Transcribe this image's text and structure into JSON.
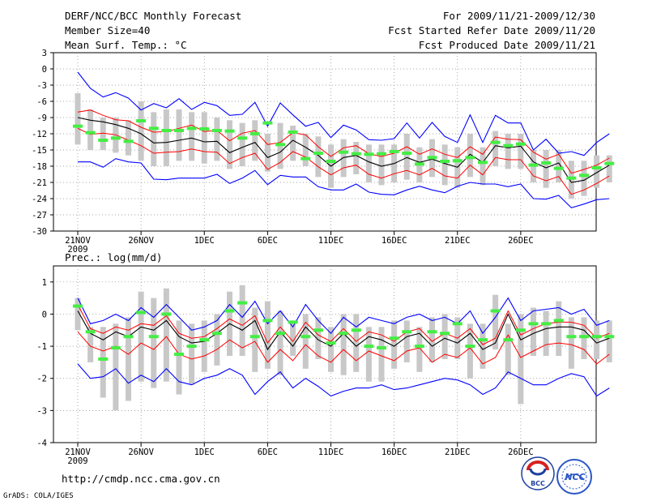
{
  "header": {
    "title": "DERF/NCC/BCC Monthly Forecast",
    "member_size": "Member Size=40",
    "period": "For 2009/11/21-2009/12/30",
    "refer_date": "Fcst Started Refer Date 2009/11/20",
    "produced_date": "Fcst Produced Date 2009/11/21"
  },
  "footer": {
    "url": "http://cmdp.ncc.cma.gov.cn",
    "credit": "GrADS: COLA/IGES",
    "logo_bcc_text": "BCC",
    "logo_ncc_text": "NCC"
  },
  "colors": {
    "mean": "#000000",
    "spread": "#ff0000",
    "extreme": "#0000ff",
    "box": "#c8c8c8",
    "obs": "#44ee44",
    "grid": "#888888"
  },
  "chart_data": [
    {
      "type": "line",
      "title": "Mean Surf. Temp.: °C",
      "days": 40,
      "ylim": [
        -30,
        3
      ],
      "yticks": [
        3,
        0,
        -3,
        -6,
        -9,
        -12,
        -15,
        -18,
        -21,
        -24,
        -27,
        -30
      ],
      "x_ticks": [
        {
          "day": 0,
          "label": "21NOV",
          "sub": "2009"
        },
        {
          "day": 5,
          "label": "26NOV"
        },
        {
          "day": 10,
          "label": "1DEC"
        },
        {
          "day": 15,
          "label": "6DEC"
        },
        {
          "day": 20,
          "label": "11DEC"
        },
        {
          "day": 25,
          "label": "16DEC"
        },
        {
          "day": 30,
          "label": "21DEC"
        },
        {
          "day": 35,
          "label": "26DEC"
        }
      ],
      "series": [
        {
          "name": "mean",
          "values": [
            -9,
            -9.5,
            -9.8,
            -10.3,
            -11,
            -12,
            -13.7,
            -13.6,
            -13.2,
            -12.8,
            -13.5,
            -13.4,
            -15.5,
            -14.5,
            -13.6,
            -16.4,
            -15.4,
            -13.2,
            -14.5,
            -16,
            -18,
            -16.4,
            -16,
            -17.2,
            -18,
            -17.5,
            -16.4,
            -17.3,
            -16.7,
            -17.5,
            -18.2,
            -15.8,
            -17.3,
            -14.2,
            -14.6,
            -14.3,
            -17.2,
            -18.3,
            -17.4,
            -21,
            -20.6,
            -19.2,
            -17.8
          ]
        },
        {
          "name": "upper-spread",
          "values": [
            -8,
            -7.6,
            -8.6,
            -9.4,
            -9.6,
            -10.8,
            -11.7,
            -11.6,
            -11,
            -10.4,
            -11.6,
            -11.4,
            -13.3,
            -11.9,
            -11.4,
            -14,
            -13.6,
            -11.8,
            -12.2,
            -14.4,
            -16.2,
            -14.6,
            -14.2,
            -15.7,
            -16.2,
            -15.6,
            -14.4,
            -15.8,
            -14.8,
            -15.8,
            -16.4,
            -14.4,
            -15.8,
            -12.6,
            -13,
            -13.1,
            -15.4,
            -16.7,
            -15.8,
            -19.3,
            -18.6,
            -17.8,
            -16.5
          ]
        },
        {
          "name": "lower-spread",
          "values": [
            -11,
            -12.1,
            -11.9,
            -12.2,
            -13.2,
            -14.2,
            -15.6,
            -15.4,
            -15.3,
            -14.8,
            -15.3,
            -15.4,
            -17.5,
            -16.4,
            -15.6,
            -18.6,
            -17.3,
            -15.3,
            -16.3,
            -18.1,
            -19.6,
            -18.3,
            -17.8,
            -19.5,
            -20.2,
            -19.4,
            -18.8,
            -19.6,
            -18.4,
            -19.8,
            -20.2,
            -17.8,
            -19.6,
            -16.4,
            -16.8,
            -16.8,
            -19.8,
            -20.7,
            -19.9,
            -23.2,
            -22.4,
            -21.2,
            -19.8
          ]
        },
        {
          "name": "maximum",
          "values": [
            -0.6,
            -3.6,
            -5.2,
            -4.4,
            -5.4,
            -7.6,
            -6.4,
            -7.2,
            -5.5,
            -7.5,
            -6.2,
            -6.8,
            -8.6,
            -8.4,
            -6.2,
            -10.6,
            -6.3,
            -8.5,
            -10.6,
            -9.9,
            -12.7,
            -10.4,
            -11.3,
            -13.1,
            -13.2,
            -12.9,
            -10,
            -12.8,
            -9.9,
            -12.5,
            -13.6,
            -8.5,
            -13.6,
            -8.6,
            -10,
            -10,
            -15,
            -13,
            -15.6,
            -15.3,
            -16,
            -13.6,
            -12
          ]
        },
        {
          "name": "minimum",
          "values": [
            -17.2,
            -17.2,
            -18.2,
            -16.6,
            -17.2,
            -17.4,
            -20.4,
            -20.5,
            -20.2,
            -20.2,
            -20.2,
            -19.5,
            -21.2,
            -20.2,
            -18.8,
            -21.4,
            -19.7,
            -20,
            -20,
            -21.8,
            -22.4,
            -22.4,
            -21.3,
            -22.8,
            -23.2,
            -23.3,
            -22.4,
            -21.7,
            -22.4,
            -22.9,
            -21.7,
            -21,
            -21.3,
            -21.3,
            -21.8,
            -21.3,
            -24,
            -24.1,
            -23.4,
            -25.7,
            -25,
            -24.2,
            -24
          ]
        },
        {
          "name": "observed",
          "values": [
            -10.6,
            -11.8,
            -13.2,
            -12.8,
            -13.4,
            -9.6,
            -11,
            -11.4,
            -11.4,
            -11,
            -11.1,
            -11.4,
            -11.5,
            -12.8,
            -12,
            -10,
            -14,
            -11.7,
            -16.6,
            -15.6,
            -17.1,
            -15.4,
            -15.7,
            -15.8,
            -15.7,
            -15.3,
            -15.6,
            -17.6,
            -16.4,
            -17.1,
            -17,
            -16.4,
            -17.3,
            -13.6,
            -14.2,
            -13.9,
            -17.8,
            -17.4,
            -18.4,
            -20.2,
            -19.7,
            -18.3,
            -17.5
          ]
        },
        {
          "name": "box-top",
          "values": [
            -4.5,
            -7.5,
            -9,
            -9,
            -9.5,
            -6,
            -8,
            -7.5,
            -7.5,
            -8,
            -8,
            -9,
            -9.5,
            -10,
            -9.5,
            -12,
            -10,
            -10.5,
            -12,
            -12.5,
            -14,
            -13,
            -13.5,
            -14,
            -14,
            -14,
            -12,
            -14.5,
            -13,
            -14,
            -14.5,
            -12,
            -14.5,
            -11.5,
            -12,
            -12,
            -15,
            -15,
            -15,
            -17,
            -17,
            -16,
            -16
          ]
        },
        {
          "name": "box-bottom",
          "values": [
            -14,
            -15,
            -15,
            -15.5,
            -16,
            -17,
            -18,
            -18,
            -17,
            -17,
            -17.5,
            -17,
            -18.5,
            -18,
            -17,
            -19,
            -18.5,
            -17,
            -18,
            -20,
            -22,
            -20,
            -19.5,
            -21,
            -21.5,
            -21,
            -20.5,
            -21,
            -20,
            -21.5,
            -22,
            -20,
            -21.5,
            -18,
            -18.5,
            -18.5,
            -21,
            -22,
            -21,
            -24,
            -23.5,
            -22,
            -21
          ]
        }
      ]
    },
    {
      "type": "line",
      "title": "Prec.: log(mm/d)",
      "days": 40,
      "ylim": [
        -4,
        1.5
      ],
      "yticks": [
        1,
        0,
        -1,
        -2,
        -3,
        -4
      ],
      "x_ticks": [
        {
          "day": 0,
          "label": "21NOV",
          "sub": "2009"
        },
        {
          "day": 5,
          "label": "26NOV"
        },
        {
          "day": 10,
          "label": "1DEC"
        },
        {
          "day": 15,
          "label": "6DEC"
        },
        {
          "day": 20,
          "label": "11DEC"
        },
        {
          "day": 25,
          "label": "16DEC"
        },
        {
          "day": 30,
          "label": "21DEC"
        },
        {
          "day": 35,
          "label": "26DEC"
        }
      ],
      "series": [
        {
          "name": "mean",
          "values": [
            0.1,
            -0.6,
            -0.8,
            -0.55,
            -0.7,
            -0.4,
            -0.5,
            -0.2,
            -0.7,
            -0.9,
            -0.85,
            -0.6,
            -0.3,
            -0.5,
            -0.2,
            -1.1,
            -0.55,
            -1.0,
            -0.4,
            -0.8,
            -1.0,
            -0.6,
            -1.0,
            -0.7,
            -0.8,
            -1.0,
            -0.7,
            -0.6,
            -1.0,
            -0.75,
            -0.9,
            -0.6,
            -1.1,
            -0.9,
            -0.0,
            -0.8,
            -0.6,
            -0.45,
            -0.4,
            -0.4,
            -0.5,
            -0.9,
            -0.75
          ]
        },
        {
          "name": "upper-spread",
          "values": [
            0.3,
            -0.45,
            -0.6,
            -0.4,
            -0.5,
            -0.3,
            -0.35,
            -0.05,
            -0.6,
            -0.75,
            -0.7,
            -0.45,
            -0.15,
            -0.35,
            -0.05,
            -0.9,
            -0.4,
            -0.85,
            -0.25,
            -0.65,
            -0.85,
            -0.45,
            -0.85,
            -0.55,
            -0.65,
            -0.85,
            -0.55,
            -0.45,
            -0.85,
            -0.6,
            -0.75,
            -0.45,
            -0.95,
            -0.75,
            0.1,
            -0.65,
            -0.45,
            -0.3,
            -0.25,
            -0.25,
            -0.35,
            -0.75,
            -0.6
          ]
        },
        {
          "name": "lower-spread",
          "values": [
            -0.55,
            -1.0,
            -1.15,
            -1.0,
            -1.25,
            -0.9,
            -1.1,
            -0.7,
            -1.25,
            -1.4,
            -1.3,
            -1.1,
            -0.8,
            -1.05,
            -0.85,
            -1.5,
            -1.1,
            -1.45,
            -0.95,
            -1.3,
            -1.5,
            -1.1,
            -1.45,
            -1.15,
            -1.3,
            -1.45,
            -1.15,
            -1.05,
            -1.5,
            -1.25,
            -1.35,
            -1.05,
            -1.55,
            -1.35,
            -0.65,
            -1.35,
            -1.15,
            -0.95,
            -0.9,
            -0.95,
            -1.1,
            -1.55,
            -1.25
          ]
        },
        {
          "name": "maximum",
          "values": [
            0.5,
            -0.3,
            -0.2,
            0.0,
            -0.2,
            0.2,
            -0.1,
            0.3,
            -0.1,
            -0.5,
            -0.4,
            -0.2,
            0.3,
            -0.1,
            0.4,
            -0.3,
            0.1,
            -0.4,
            0.3,
            -0.2,
            -0.6,
            -0.1,
            -0.4,
            -0.1,
            -0.2,
            -0.3,
            -0.1,
            0.0,
            -0.2,
            -0.1,
            -0.3,
            0.1,
            -0.6,
            -0.1,
            0.5,
            -0.2,
            0.1,
            0.15,
            0.2,
            0.0,
            0.15,
            -0.35,
            -0.2
          ]
        },
        {
          "name": "minimum",
          "values": [
            -1.55,
            -2.0,
            -1.95,
            -1.7,
            -2.15,
            -1.9,
            -2.1,
            -1.7,
            -2.1,
            -2.2,
            -2.0,
            -1.9,
            -1.7,
            -1.9,
            -2.5,
            -2.1,
            -1.8,
            -2.3,
            -2.0,
            -2.25,
            -2.55,
            -2.4,
            -2.3,
            -2.3,
            -2.2,
            -2.35,
            -2.3,
            -2.2,
            -2.1,
            -2.0,
            -2.05,
            -2.2,
            -2.5,
            -2.3,
            -1.8,
            -2.0,
            -2.2,
            -2.2,
            -2.0,
            -1.85,
            -1.95,
            -2.55,
            -2.3
          ]
        },
        {
          "name": "observed",
          "values": [
            0.25,
            -0.55,
            -1.4,
            -1.05,
            -0.7,
            0.05,
            -0.7,
            -0.0,
            -1.25,
            -1.0,
            -0.8,
            -0.6,
            0.1,
            0.35,
            -0.7,
            -0.2,
            -0.6,
            -0.25,
            -0.7,
            -0.5,
            -0.9,
            -0.6,
            -0.5,
            -1.0,
            -1.05,
            -0.75,
            -0.55,
            -1.0,
            -0.55,
            -0.6,
            -0.3,
            -1.0,
            -0.8,
            0.1,
            -0.8,
            -0.5,
            -0.3,
            -0.3,
            -0.2,
            -0.7,
            -0.7,
            -0.7,
            -0.7
          ]
        },
        {
          "name": "box-top",
          "values": [
            0.5,
            -0.4,
            -0.4,
            -0.3,
            -0.1,
            0.7,
            0.5,
            0.8,
            -0.2,
            -0.3,
            -0.2,
            0.0,
            0.7,
            0.9,
            0.2,
            0.4,
            0.1,
            -0.2,
            0.0,
            -0.1,
            -0.4,
            0.0,
            0.0,
            -0.4,
            -0.4,
            -0.2,
            -0.2,
            -0.4,
            -0.1,
            0.0,
            -0.1,
            -0.3,
            -0.3,
            0.6,
            -0.3,
            0.0,
            0.2,
            0.1,
            0.4,
            -0.1,
            -0.1,
            -0.2,
            -0.2
          ]
        },
        {
          "name": "box-bottom",
          "values": [
            -0.5,
            -1.5,
            -2.6,
            -3.0,
            -2.7,
            -2.1,
            -2.3,
            -2.1,
            -2.5,
            -2.2,
            -1.8,
            -1.6,
            -1.3,
            -1.3,
            -1.8,
            -1.7,
            -1.9,
            -1.3,
            -1.7,
            -1.4,
            -1.8,
            -1.9,
            -1.8,
            -2.1,
            -2.1,
            -1.7,
            -1.5,
            -1.8,
            -1.5,
            -1.4,
            -1.4,
            -2.0,
            -1.7,
            -1.1,
            -1.9,
            -2.8,
            -1.3,
            -1.3,
            -1.3,
            -1.7,
            -1.4,
            -1.4,
            -1.5
          ]
        }
      ]
    }
  ]
}
